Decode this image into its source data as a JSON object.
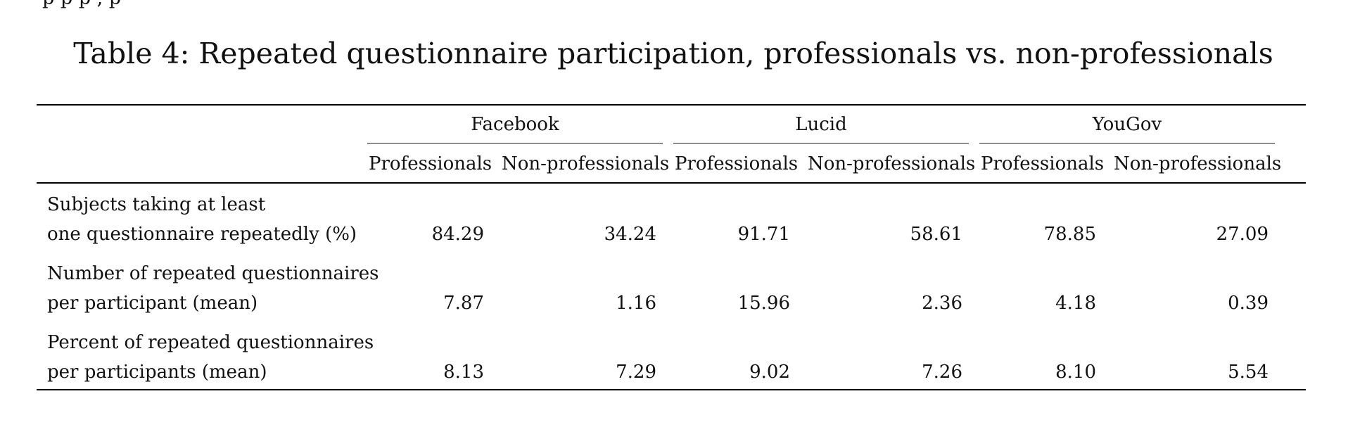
{
  "previous_text_fragment": "p    p    p    ,    p",
  "table": {
    "caption": "Table 4: Repeated questionnaire participation, professionals vs. non-professionals",
    "groups": [
      {
        "name": "Facebook",
        "columns": [
          "Professionals",
          "Non-professionals"
        ]
      },
      {
        "name": "Lucid",
        "columns": [
          "Professionals",
          "Non-professionals"
        ]
      },
      {
        "name": "YouGov",
        "columns": [
          "Professionals",
          "Non-professionals"
        ]
      }
    ],
    "rows": [
      {
        "label_line1": "Subjects taking at least",
        "label_line2": "one questionnaire repeatedly (%)",
        "values": [
          "84.29",
          "34.24",
          "91.71",
          "58.61",
          "78.85",
          "27.09"
        ]
      },
      {
        "label_line1": "Number of repeated questionnaires",
        "label_line2": "per participant (mean)",
        "values": [
          "7.87",
          "1.16",
          "15.96",
          "2.36",
          "4.18",
          "0.39"
        ]
      },
      {
        "label_line1": "Percent of repeated questionnaires",
        "label_line2": "per participants (mean)",
        "values": [
          "8.13",
          "7.29",
          "9.02",
          "7.26",
          "8.10",
          "5.54"
        ]
      }
    ]
  }
}
